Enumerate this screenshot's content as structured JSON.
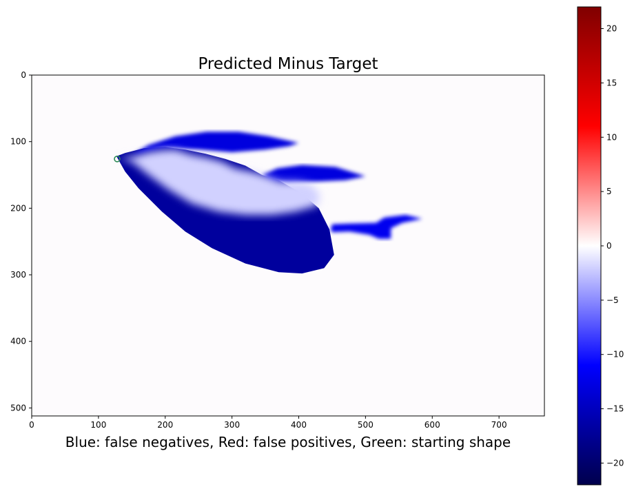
{
  "chart_data": {
    "type": "heatmap",
    "title": "Predicted Minus Target",
    "xlabel": "Blue: false negatives, Red: false positives, Green: starting shape",
    "ylabel": "",
    "xlim": [
      0,
      768
    ],
    "ylim": [
      512,
      0
    ],
    "x_ticks": [
      0,
      100,
      200,
      300,
      400,
      500,
      600,
      700
    ],
    "y_ticks": [
      0,
      100,
      200,
      300,
      400,
      500
    ],
    "colormap": "seismic",
    "color_range": [
      -22,
      22
    ],
    "colorbar_ticks": [
      -20,
      -15,
      -10,
      -5,
      0,
      5,
      10,
      15,
      20
    ],
    "starting_shape_marker": {
      "x": 128,
      "y": 126,
      "color": "#2e8b57"
    },
    "regions": [
      {
        "name": "main-body",
        "value": -17,
        "outline": [
          [
            127,
            122
          ],
          [
            140,
            145
          ],
          [
            160,
            170
          ],
          [
            195,
            205
          ],
          [
            230,
            235
          ],
          [
            270,
            260
          ],
          [
            320,
            283
          ],
          [
            370,
            296
          ],
          [
            405,
            298
          ],
          [
            438,
            290
          ],
          [
            453,
            270
          ],
          [
            446,
            232
          ],
          [
            430,
            200
          ],
          [
            405,
            178
          ],
          [
            370,
            158
          ],
          [
            345,
            150
          ],
          [
            320,
            136
          ],
          [
            290,
            126
          ],
          [
            260,
            118
          ],
          [
            230,
            112
          ],
          [
            200,
            108
          ],
          [
            168,
            110
          ],
          [
            140,
            117
          ]
        ]
      },
      {
        "name": "upper-fin",
        "value": -13,
        "outline": [
          [
            150,
            120
          ],
          [
            175,
            105
          ],
          [
            215,
            92
          ],
          [
            262,
            85
          ],
          [
            310,
            85
          ],
          [
            355,
            92
          ],
          [
            400,
            102
          ],
          [
            385,
            107
          ],
          [
            350,
            112
          ],
          [
            300,
            116
          ],
          [
            250,
            112
          ],
          [
            200,
            110
          ]
        ]
      },
      {
        "name": "middle-fin",
        "value": -13,
        "outline": [
          [
            345,
            150
          ],
          [
            368,
            140
          ],
          [
            405,
            135
          ],
          [
            455,
            138
          ],
          [
            500,
            152
          ],
          [
            470,
            158
          ],
          [
            425,
            160
          ],
          [
            385,
            162
          ],
          [
            355,
            160
          ]
        ]
      },
      {
        "name": "tail",
        "value": -12,
        "outline": [
          [
            448,
            232
          ],
          [
            450,
            224
          ],
          [
            476,
            223
          ],
          [
            516,
            222
          ],
          [
            528,
            214
          ],
          [
            560,
            210
          ],
          [
            585,
            216
          ],
          [
            555,
            222
          ],
          [
            538,
            230
          ],
          [
            538,
            246
          ],
          [
            520,
            246
          ],
          [
            506,
            240
          ],
          [
            476,
            235
          ],
          [
            450,
            236
          ]
        ]
      },
      {
        "name": "inner-light",
        "value": -2,
        "outline": [
          [
            131,
            126
          ],
          [
            150,
            130
          ],
          [
            175,
            150
          ],
          [
            205,
            172
          ],
          [
            240,
            193
          ],
          [
            280,
            205
          ],
          [
            320,
            210
          ],
          [
            360,
            210
          ],
          [
            395,
            205
          ],
          [
            428,
            196
          ],
          [
            432,
            180
          ],
          [
            420,
            165
          ],
          [
            398,
            160
          ],
          [
            372,
            160
          ],
          [
            352,
            152
          ],
          [
            333,
            146
          ],
          [
            304,
            140
          ],
          [
            285,
            130
          ],
          [
            262,
            124
          ],
          [
            240,
            120
          ],
          [
            215,
            112
          ],
          [
            195,
            113
          ],
          [
            175,
            116
          ],
          [
            155,
            122
          ]
        ]
      }
    ]
  }
}
